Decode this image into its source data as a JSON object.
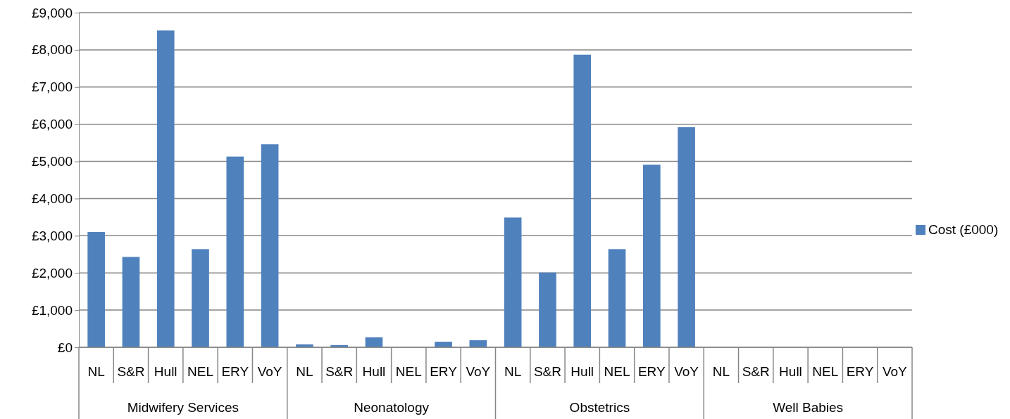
{
  "chart_data": {
    "type": "bar",
    "categories": [
      "NL",
      "S&R",
      "Hull",
      "NEL",
      "ERY",
      "VoY",
      "NL",
      "S&R",
      "Hull",
      "NEL",
      "ERY",
      "VoY",
      "NL",
      "S&R",
      "Hull",
      "NEL",
      "ERY",
      "VoY",
      "NL",
      "S&R",
      "Hull",
      "NEL",
      "ERY",
      "VoY"
    ],
    "series": [
      {
        "name": "Cost (£000)",
        "color": "#4f81bd",
        "values": [
          3100,
          2430,
          8520,
          2640,
          5130,
          5460,
          80,
          60,
          270,
          0,
          150,
          190,
          3490,
          2010,
          7870,
          2640,
          4910,
          5920,
          0,
          0,
          0,
          0,
          0,
          0
        ]
      }
    ],
    "annotations": [
      "Midwifery Services",
      "Neonatology",
      "Obstetrics",
      "Well Babies"
    ],
    "ylim": [
      0,
      9000
    ],
    "yticks": [
      {
        "value": 0,
        "label": "£0"
      },
      {
        "value": 1000,
        "label": "£1,000"
      },
      {
        "value": 2000,
        "label": "£2,000"
      },
      {
        "value": 3000,
        "label": "£3,000"
      },
      {
        "value": 4000,
        "label": "£4,000"
      },
      {
        "value": 5000,
        "label": "£5,000"
      },
      {
        "value": 6000,
        "label": "£6,000"
      },
      {
        "value": 7000,
        "label": "£7,000"
      },
      {
        "value": 8000,
        "label": "£8,000"
      },
      {
        "value": 9000,
        "label": "£9,000"
      }
    ],
    "grid": "y",
    "legend": "right"
  }
}
